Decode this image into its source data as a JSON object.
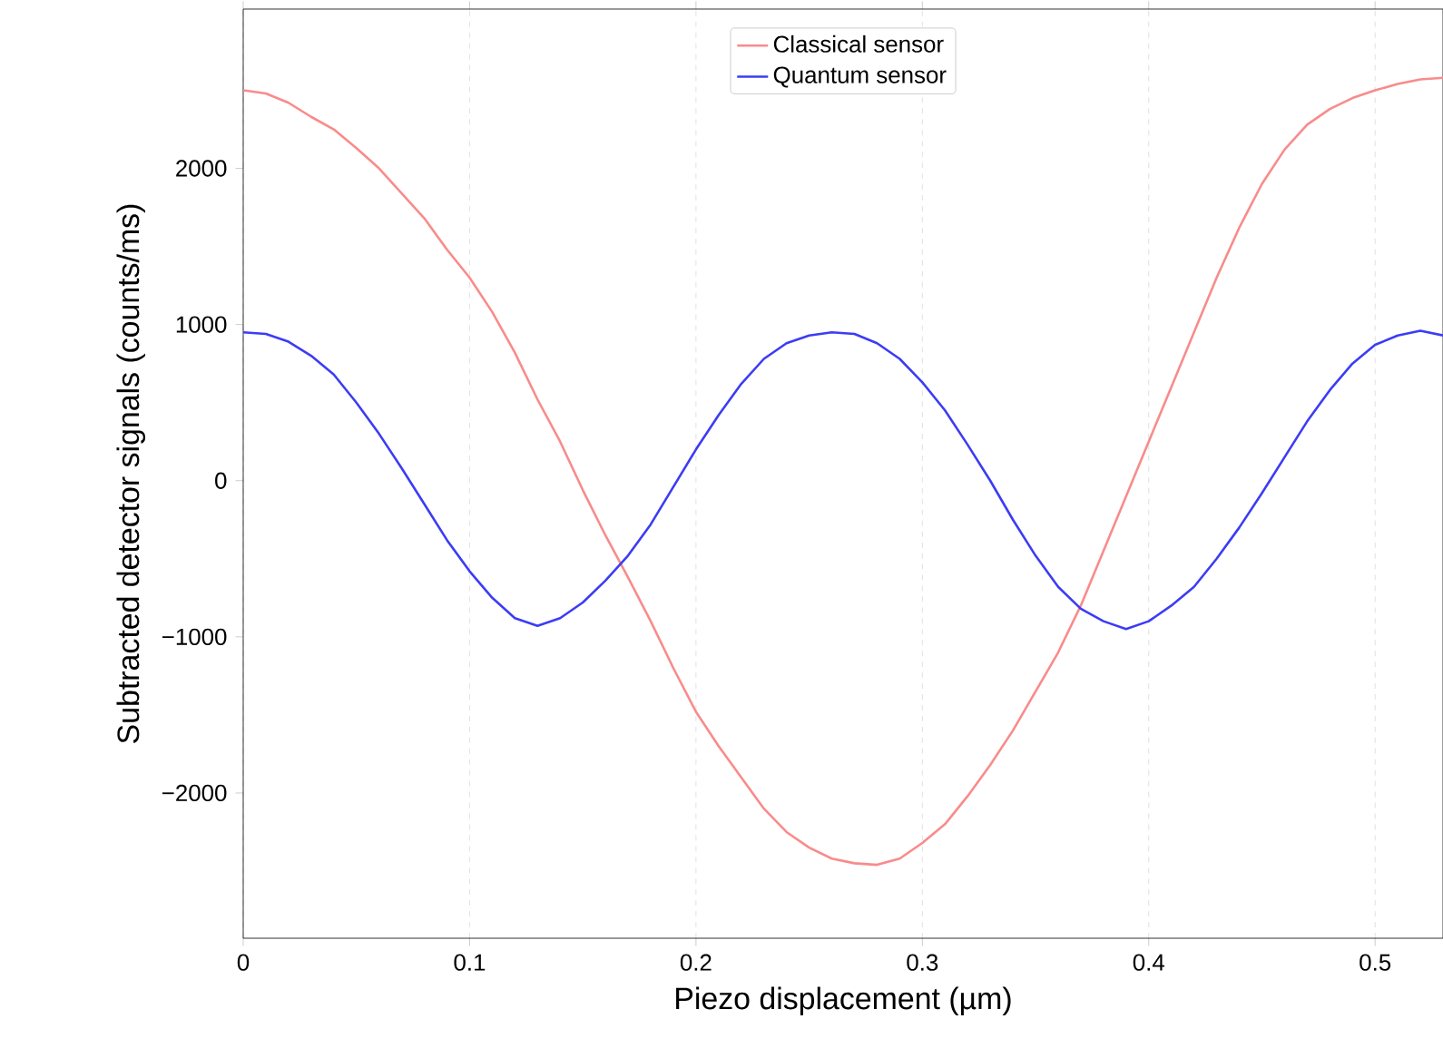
{
  "chart_data": {
    "type": "line",
    "xlabel": "Piezo displacement (µm)",
    "ylabel": "Subtracted detector signals (counts/ms)",
    "x": [
      0,
      0.01,
      0.02,
      0.03,
      0.04,
      0.05,
      0.06,
      0.07,
      0.08,
      0.09,
      0.1,
      0.11,
      0.12,
      0.13,
      0.14,
      0.15,
      0.16,
      0.17,
      0.18,
      0.19,
      0.2,
      0.21,
      0.22,
      0.23,
      0.24,
      0.25,
      0.26,
      0.27,
      0.28,
      0.29,
      0.3,
      0.31,
      0.32,
      0.33,
      0.34,
      0.35,
      0.36,
      0.37,
      0.38,
      0.39,
      0.4,
      0.41,
      0.42,
      0.43,
      0.44,
      0.45,
      0.46,
      0.47,
      0.48,
      0.49,
      0.5,
      0.51,
      0.52,
      0.53
    ],
    "series": [
      {
        "name": "Classical sensor",
        "color": "#f98b8b",
        "values": [
          2500,
          2480,
          2420,
          2330,
          2250,
          2130,
          2000,
          1840,
          1680,
          1480,
          1300,
          1080,
          820,
          520,
          250,
          -60,
          -350,
          -620,
          -900,
          -1200,
          -1480,
          -1700,
          -1900,
          -2100,
          -2250,
          -2350,
          -2420,
          -2450,
          -2460,
          -2420,
          -2320,
          -2200,
          -2020,
          -1820,
          -1600,
          -1350,
          -1100,
          -800,
          -450,
          -100,
          250,
          600,
          950,
          1300,
          1620,
          1900,
          2120,
          2280,
          2380,
          2450,
          2500,
          2540,
          2570,
          2580
        ]
      },
      {
        "name": "Quantum sensor",
        "color": "#3c3cf5",
        "values": [
          950,
          940,
          890,
          800,
          680,
          500,
          300,
          80,
          -150,
          -380,
          -580,
          -750,
          -880,
          -930,
          -880,
          -780,
          -640,
          -480,
          -280,
          -40,
          200,
          420,
          620,
          780,
          880,
          930,
          950,
          940,
          880,
          780,
          630,
          450,
          230,
          0,
          -250,
          -480,
          -680,
          -820,
          -900,
          -950,
          -900,
          -800,
          -680,
          -500,
          -300,
          -80,
          150,
          380,
          580,
          750,
          870,
          930,
          960,
          930
        ]
      }
    ],
    "xlim": [
      0,
      0.53
    ],
    "ylim": [
      -2930,
      3020
    ],
    "xticks": [
      0,
      0.1,
      0.2,
      0.3,
      0.4,
      0.5
    ],
    "yticks": [
      {
        "value": -2000,
        "label": "−2000"
      },
      {
        "value": -1000,
        "label": "−1000"
      },
      0,
      1000,
      2000
    ],
    "grid": "x",
    "legend": "top",
    "line_style": "solid",
    "marker": "none"
  }
}
